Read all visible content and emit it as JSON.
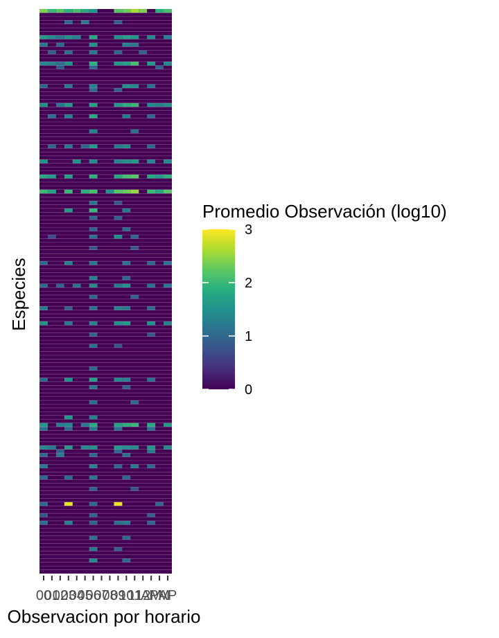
{
  "chart_data": {
    "type": "heatmap",
    "xlabel": "Observacion por horario",
    "ylabel": "Especies",
    "x_tick_labels": [
      "00",
      "01",
      "02",
      "03",
      "04",
      "05",
      "06",
      "07",
      "08",
      "09",
      "10",
      "11",
      "12",
      "AM",
      "PM",
      "AP"
    ],
    "legend": {
      "title": "Promedio Observación (log10)",
      "ticks": [
        "3",
        "2",
        "1",
        "0"
      ],
      "range": [
        0,
        3
      ],
      "placement": "right",
      "colormap": "viridis"
    },
    "grid": false,
    "n_rows": 150,
    "n_cols": 16,
    "cells": [
      [
        0,
        0,
        2.4
      ],
      [
        0,
        1,
        2.0
      ],
      [
        0,
        2,
        2.2
      ],
      [
        0,
        3,
        1.9
      ],
      [
        0,
        4,
        2.1
      ],
      [
        0,
        5,
        1.8
      ],
      [
        0,
        6,
        1.6
      ],
      [
        0,
        9,
        2.2
      ],
      [
        0,
        10,
        2.3
      ],
      [
        0,
        11,
        2.6
      ],
      [
        0,
        12,
        2.4
      ],
      [
        0,
        14,
        1.9
      ],
      [
        0,
        15,
        2.1
      ],
      [
        3,
        3,
        1.0
      ],
      [
        3,
        5,
        1.2
      ],
      [
        3,
        9,
        0.9
      ],
      [
        7,
        0,
        1.6
      ],
      [
        7,
        1,
        1.4
      ],
      [
        7,
        2,
        1.2
      ],
      [
        7,
        3,
        1.5
      ],
      [
        7,
        4,
        1.3
      ],
      [
        7,
        6,
        1.8
      ],
      [
        7,
        9,
        1.5
      ],
      [
        7,
        10,
        1.7
      ],
      [
        7,
        11,
        1.6
      ],
      [
        7,
        13,
        1.4
      ],
      [
        7,
        15,
        1.3
      ],
      [
        9,
        0,
        1.2
      ],
      [
        9,
        2,
        1.0
      ],
      [
        9,
        6,
        1.5
      ],
      [
        9,
        10,
        1.3
      ],
      [
        9,
        11,
        1.2
      ],
      [
        11,
        1,
        0.9
      ],
      [
        11,
        3,
        1.1
      ],
      [
        11,
        6,
        1.2
      ],
      [
        11,
        9,
        1.0
      ],
      [
        11,
        12,
        0.9
      ],
      [
        14,
        0,
        1.4
      ],
      [
        14,
        1,
        1.3
      ],
      [
        14,
        2,
        1.1
      ],
      [
        14,
        3,
        1.5
      ],
      [
        14,
        6,
        1.9
      ],
      [
        14,
        9,
        1.6
      ],
      [
        14,
        10,
        1.7
      ],
      [
        14,
        11,
        2.1
      ],
      [
        14,
        13,
        1.6
      ],
      [
        14,
        15,
        1.4
      ],
      [
        15,
        2,
        0.8
      ],
      [
        15,
        6,
        1.0
      ],
      [
        15,
        14,
        0.9
      ],
      [
        20,
        0,
        1.0
      ],
      [
        20,
        3,
        1.2
      ],
      [
        20,
        6,
        1.3
      ],
      [
        20,
        10,
        1.5
      ],
      [
        20,
        11,
        1.4
      ],
      [
        20,
        13,
        1.1
      ],
      [
        21,
        6,
        1.0
      ],
      [
        21,
        9,
        0.9
      ],
      [
        25,
        0,
        1.5
      ],
      [
        25,
        2,
        1.2
      ],
      [
        25,
        3,
        1.6
      ],
      [
        25,
        6,
        1.7
      ],
      [
        25,
        9,
        1.6
      ],
      [
        25,
        10,
        1.9
      ],
      [
        25,
        11,
        2.0
      ],
      [
        25,
        13,
        1.4
      ],
      [
        25,
        14,
        1.3
      ],
      [
        25,
        15,
        1.5
      ],
      [
        28,
        1,
        1.1
      ],
      [
        28,
        3,
        1.3
      ],
      [
        28,
        6,
        1.8
      ],
      [
        28,
        10,
        1.2
      ],
      [
        28,
        13,
        1.0
      ],
      [
        32,
        6,
        1.3
      ],
      [
        32,
        11,
        1.1
      ],
      [
        36,
        1,
        1.0
      ],
      [
        36,
        3,
        1.2
      ],
      [
        36,
        5,
        1.0
      ],
      [
        36,
        6,
        1.6
      ],
      [
        36,
        9,
        1.2
      ],
      [
        36,
        10,
        1.4
      ],
      [
        36,
        13,
        1.0
      ],
      [
        40,
        0,
        1.5
      ],
      [
        40,
        4,
        1.5
      ],
      [
        40,
        6,
        1.4
      ],
      [
        40,
        9,
        1.3
      ],
      [
        40,
        10,
        1.5
      ],
      [
        40,
        11,
        1.6
      ],
      [
        40,
        13,
        1.3
      ],
      [
        40,
        15,
        1.4
      ],
      [
        44,
        0,
        1.8
      ],
      [
        44,
        1,
        1.6
      ],
      [
        44,
        3,
        1.7
      ],
      [
        44,
        6,
        1.9
      ],
      [
        44,
        9,
        1.8
      ],
      [
        44,
        10,
        2.1
      ],
      [
        44,
        11,
        2.2
      ],
      [
        44,
        13,
        1.8
      ],
      [
        44,
        14,
        1.6
      ],
      [
        44,
        15,
        1.9
      ],
      [
        48,
        0,
        2.0
      ],
      [
        48,
        1,
        1.7
      ],
      [
        48,
        3,
        2.0
      ],
      [
        48,
        5,
        1.9
      ],
      [
        48,
        6,
        2.1
      ],
      [
        48,
        8,
        1.5
      ],
      [
        48,
        9,
        2.2
      ],
      [
        48,
        10,
        2.3
      ],
      [
        48,
        11,
        2.5
      ],
      [
        48,
        13,
        2.0
      ],
      [
        48,
        14,
        1.8
      ],
      [
        48,
        15,
        2.2
      ],
      [
        51,
        6,
        1.2
      ],
      [
        51,
        9,
        0.8
      ],
      [
        53,
        3,
        1.6
      ],
      [
        53,
        6,
        2.0
      ],
      [
        53,
        10,
        1.2
      ],
      [
        55,
        6,
        1.0
      ],
      [
        55,
        9,
        0.9
      ],
      [
        58,
        6,
        0.9
      ],
      [
        58,
        10,
        1.0
      ],
      [
        60,
        1,
        0.7
      ],
      [
        60,
        6,
        1.1
      ],
      [
        60,
        9,
        1.5
      ],
      [
        60,
        11,
        1.0
      ],
      [
        63,
        6,
        0.8
      ],
      [
        63,
        11,
        0.8
      ],
      [
        67,
        0,
        1.0
      ],
      [
        67,
        3,
        1.3
      ],
      [
        67,
        6,
        1.2
      ],
      [
        67,
        10,
        1.1
      ],
      [
        67,
        13,
        1.0
      ],
      [
        67,
        15,
        1.1
      ],
      [
        71,
        6,
        1.3
      ],
      [
        71,
        10,
        1.0
      ],
      [
        73,
        0,
        1.0
      ],
      [
        73,
        2,
        0.9
      ],
      [
        73,
        4,
        1.1
      ],
      [
        73,
        6,
        1.4
      ],
      [
        73,
        9,
        1.2
      ],
      [
        73,
        10,
        1.5
      ],
      [
        73,
        13,
        1.1
      ],
      [
        73,
        15,
        1.2
      ],
      [
        76,
        6,
        1.0
      ],
      [
        76,
        11,
        0.9
      ],
      [
        79,
        0,
        1.2
      ],
      [
        79,
        3,
        0.9
      ],
      [
        79,
        6,
        1.1
      ],
      [
        79,
        9,
        1.3
      ],
      [
        79,
        10,
        1.2
      ],
      [
        79,
        13,
        1.0
      ],
      [
        83,
        0,
        1.5
      ],
      [
        83,
        3,
        1.2
      ],
      [
        83,
        6,
        1.3
      ],
      [
        83,
        9,
        1.5
      ],
      [
        83,
        10,
        1.6
      ],
      [
        83,
        13,
        1.5
      ],
      [
        83,
        15,
        1.3
      ],
      [
        86,
        6,
        0.9
      ],
      [
        86,
        13,
        0.8
      ],
      [
        89,
        6,
        1.1
      ],
      [
        89,
        9,
        0.8
      ],
      [
        95,
        6,
        1.0
      ],
      [
        98,
        0,
        1.0
      ],
      [
        98,
        3,
        1.5
      ],
      [
        98,
        6,
        1.7
      ],
      [
        98,
        9,
        1.4
      ],
      [
        98,
        10,
        1.3
      ],
      [
        98,
        13,
        1.1
      ],
      [
        100,
        6,
        1.2
      ],
      [
        100,
        10,
        0.9
      ],
      [
        104,
        6,
        1.1
      ],
      [
        104,
        11,
        1.0
      ],
      [
        108,
        3,
        1.6
      ],
      [
        108,
        6,
        1.3
      ],
      [
        110,
        0,
        1.6
      ],
      [
        110,
        2,
        1.3
      ],
      [
        110,
        3,
        1.4
      ],
      [
        110,
        5,
        1.2
      ],
      [
        110,
        6,
        1.8
      ],
      [
        110,
        9,
        1.7
      ],
      [
        110,
        10,
        1.9
      ],
      [
        110,
        11,
        2.0
      ],
      [
        110,
        13,
        1.8
      ],
      [
        110,
        15,
        1.6
      ],
      [
        111,
        0,
        1.1
      ],
      [
        111,
        3,
        1.0
      ],
      [
        111,
        6,
        1.2
      ],
      [
        111,
        9,
        1.1
      ],
      [
        111,
        13,
        1.1
      ],
      [
        116,
        0,
        1.4
      ],
      [
        116,
        1,
        1.2
      ],
      [
        116,
        3,
        1.6
      ],
      [
        116,
        5,
        1.4
      ],
      [
        116,
        6,
        1.5
      ],
      [
        116,
        9,
        1.6
      ],
      [
        116,
        10,
        1.5
      ],
      [
        116,
        11,
        1.4
      ],
      [
        116,
        13,
        1.5
      ],
      [
        116,
        15,
        1.4
      ],
      [
        117,
        2,
        0.9
      ],
      [
        117,
        9,
        1.0
      ],
      [
        117,
        13,
        1.2
      ],
      [
        118,
        0,
        1.0
      ],
      [
        118,
        2,
        1.2
      ],
      [
        118,
        6,
        1.0
      ],
      [
        118,
        10,
        1.1
      ],
      [
        121,
        0,
        1.2
      ],
      [
        121,
        6,
        1.3
      ],
      [
        121,
        9,
        1.0
      ],
      [
        121,
        11,
        1.2
      ],
      [
        121,
        13,
        1.0
      ],
      [
        124,
        0,
        1.0
      ],
      [
        124,
        3,
        1.1
      ],
      [
        124,
        6,
        1.2
      ],
      [
        124,
        10,
        1.0
      ],
      [
        127,
        6,
        0.9
      ],
      [
        127,
        11,
        0.8
      ],
      [
        131,
        0,
        1.0
      ],
      [
        131,
        3,
        2.9
      ],
      [
        131,
        6,
        1.0
      ],
      [
        131,
        9,
        2.9
      ],
      [
        131,
        14,
        1.0
      ],
      [
        134,
        0,
        0.8
      ],
      [
        134,
        6,
        0.9
      ],
      [
        134,
        13,
        0.9
      ],
      [
        136,
        0,
        1.1
      ],
      [
        136,
        3,
        1.3
      ],
      [
        136,
        6,
        1.0
      ],
      [
        136,
        9,
        1.1
      ],
      [
        136,
        10,
        1.2
      ],
      [
        136,
        13,
        1.0
      ],
      [
        140,
        6,
        1.1
      ],
      [
        140,
        10,
        1.0
      ],
      [
        143,
        6,
        1.2
      ],
      [
        143,
        9,
        0.9
      ],
      [
        146,
        6,
        1.4
      ],
      [
        146,
        10,
        1.0
      ]
    ]
  }
}
